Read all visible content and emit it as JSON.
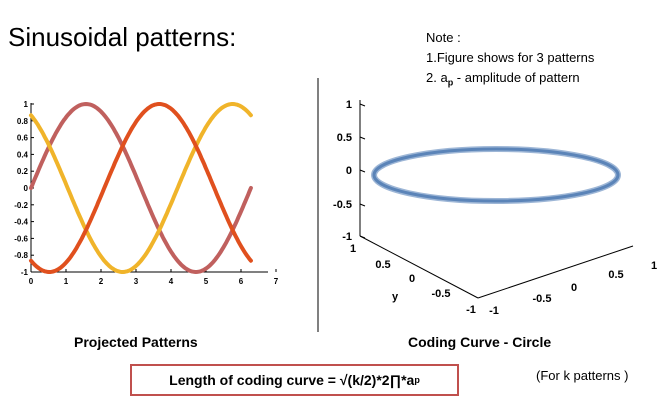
{
  "title": "Sinusoidal patterns:",
  "note": {
    "heading": "Note :",
    "line1": "1.Figure shows for 3 patterns",
    "line2_prefix": "2. a",
    "line2_sub": "p",
    "line2_suffix": " - amplitude of pattern"
  },
  "left_plot": {
    "caption": "Projected Patterns",
    "x_ticks": [
      "0",
      "1",
      "2",
      "3",
      "4",
      "5",
      "6",
      "7"
    ],
    "y_ticks": [
      "1",
      "0.8",
      "0.6",
      "0.4",
      "0.2",
      "0",
      "-0.2",
      "-0.4",
      "-0.6",
      "-0.8",
      "-1"
    ],
    "colors": [
      "#c0605e",
      "#f0b42a",
      "#e0501e"
    ]
  },
  "right_plot": {
    "caption": "Coding Curve - Circle",
    "z_ticks": [
      "1",
      "0.5",
      "0",
      "-0.5",
      "-1"
    ],
    "y_ticks": [
      "1",
      "0.5",
      "0",
      "-0.5",
      "-1"
    ],
    "y_label": "y",
    "x_ticks": [
      "-1",
      "-0.5",
      "0",
      "0.5",
      "1"
    ],
    "curve_color": "#5b84b8"
  },
  "formula": {
    "text": "Length of coding curve  = √(k/2)*2∏*a",
    "sub": "p"
  },
  "for_k": "(For k patterns )",
  "divider_color": "#000000",
  "formula_border_color": "#c0504d",
  "chart_data": {
    "type": "line",
    "x_range": [
      0,
      6.283
    ],
    "ylim": [
      -1,
      1
    ],
    "series": [
      {
        "function": "sin(x)",
        "phase": 0,
        "color": "#c0605e"
      },
      {
        "function": "sin(x + 2π/3)",
        "phase": 2.0944,
        "color": "#f0b42a"
      },
      {
        "function": "sin(x - 2π/3)",
        "phase": -2.0944,
        "color": "#e0501e"
      }
    ]
  }
}
